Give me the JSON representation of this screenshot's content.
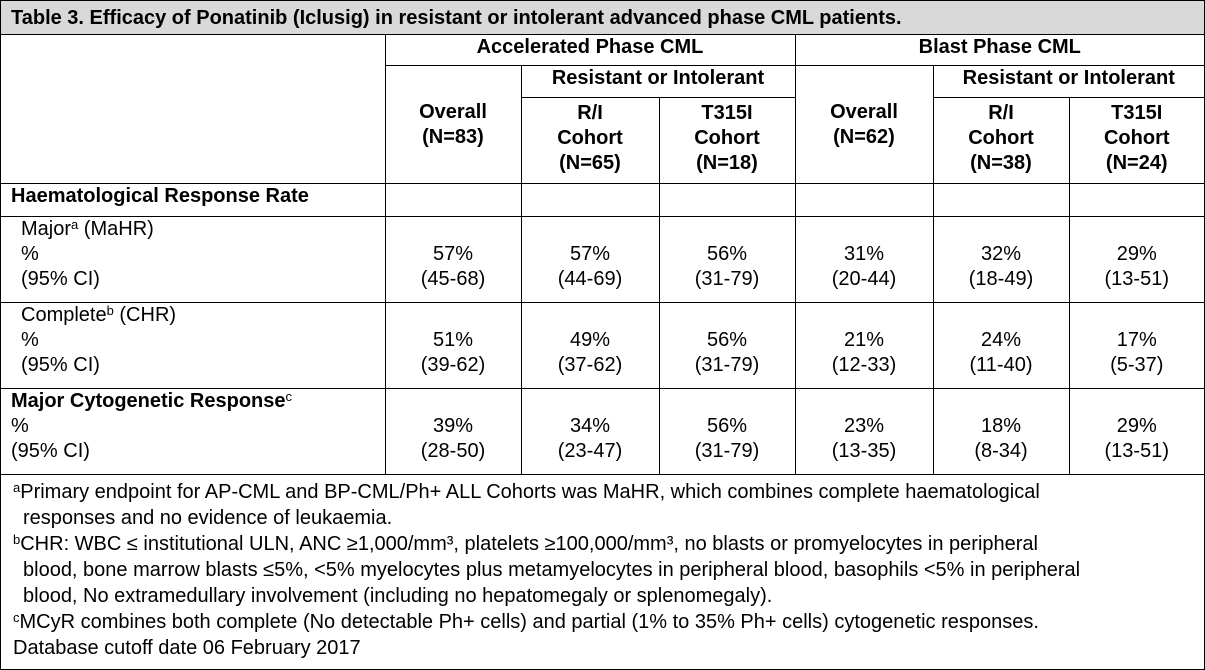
{
  "title": "Table 3. Efficacy of Ponatinib (Iclusig) in resistant or intolerant advanced phase CML patients.",
  "headers": {
    "ap": "Accelerated Phase CML",
    "bp": "Blast Phase CML",
    "ri_ap": "Resistant or Intolerant",
    "ri_bp": "Resistant or Intolerant",
    "ap_overall": [
      "Overall",
      "(N=83)"
    ],
    "ap_ri": [
      "R/I",
      "Cohort",
      "(N=65)"
    ],
    "ap_t315i": [
      "T315I",
      "Cohort",
      "(N=18)"
    ],
    "bp_overall": [
      "Overall",
      "(N=62)"
    ],
    "bp_ri": [
      "R/I",
      "Cohort",
      "(N=38)"
    ],
    "bp_t315i": [
      "T315I",
      "Cohort",
      "(N=24)"
    ]
  },
  "sections": {
    "hematological": "Haematological Response Rate"
  },
  "rows": {
    "mahr": {
      "label": "Major",
      "sup": "a",
      "label_rest": " (MaHR)",
      "pct_label": "%",
      "ci_label": "(95% CI)",
      "values": [
        [
          "57%",
          "(45-68)"
        ],
        [
          "57%",
          "(44-69)"
        ],
        [
          "56%",
          "(31-79)"
        ],
        [
          "31%",
          "(20-44)"
        ],
        [
          "32%",
          "(18-49)"
        ],
        [
          "29%",
          "(13-51)"
        ]
      ]
    },
    "chr": {
      "label": "Complete",
      "sup": "b",
      "label_rest": " (CHR)",
      "pct_label": "%",
      "ci_label": "(95% CI)",
      "values": [
        [
          "51%",
          "(39-62)"
        ],
        [
          "49%",
          "(37-62)"
        ],
        [
          "56%",
          "(31-79)"
        ],
        [
          "21%",
          "(12-33)"
        ],
        [
          "24%",
          "(11-40)"
        ],
        [
          "17%",
          "(5-37)"
        ]
      ]
    },
    "mcyr": {
      "label": "Major Cytogenetic Response",
      "sup": "c",
      "pct_label": "%",
      "ci_label": "(95% CI)",
      "values": [
        [
          "39%",
          "(28-50)"
        ],
        [
          "34%",
          "(23-47)"
        ],
        [
          "56%",
          "(31-79)"
        ],
        [
          "23%",
          "(13-35)"
        ],
        [
          "18%",
          "(8-34)"
        ],
        [
          "29%",
          "(13-51)"
        ]
      ]
    }
  },
  "footnotes": {
    "a": {
      "mark": "a",
      "line1": "Primary endpoint for AP-CML and BP-CML/Ph+ ALL Cohorts was MaHR, which combines complete haematological",
      "line2": "responses and no evidence of leukaemia."
    },
    "b": {
      "mark": "b",
      "line1": "CHR: WBC ≤ institutional ULN, ANC ≥1,000/mm³, platelets ≥100,000/mm³, no blasts or promyelocytes in peripheral",
      "line2": "blood, bone marrow blasts ≤5%, <5% myelocytes plus metamyelocytes in peripheral blood, basophils <5% in peripheral",
      "line3": "blood, No extramedullary involvement (including no hepatomegaly or splenomegaly)."
    },
    "c": {
      "mark": "c",
      "line1": "MCyR combines both complete (No detectable Ph+ cells) and partial (1% to 35% Ph+ cells) cytogenetic responses."
    },
    "cutoff": "Database cutoff date 06 February 2017"
  }
}
